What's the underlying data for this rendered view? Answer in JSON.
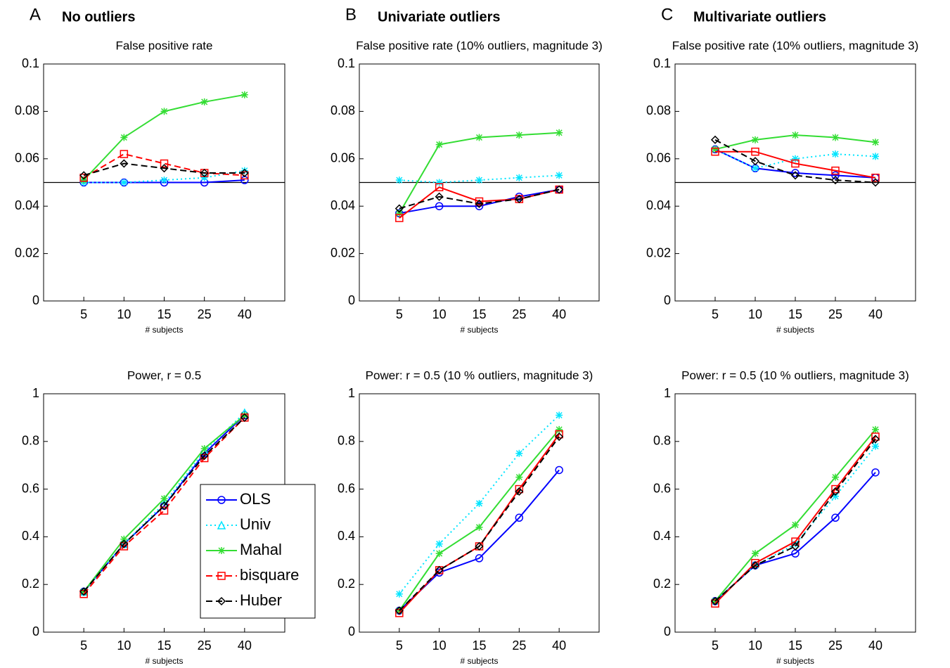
{
  "chart_data": [
    {
      "type": "line",
      "panel": "A",
      "heading": "No outliers",
      "title": "False positive rate",
      "xlabel": "# subjects",
      "categories": [
        "5",
        "10",
        "15",
        "25",
        "40"
      ],
      "ylim": [
        0,
        0.1
      ],
      "yticks": [
        0,
        0.02,
        0.04,
        0.06,
        0.08,
        0.1
      ],
      "hline": 0.05,
      "series": [
        {
          "name": "OLS",
          "color": "#0000ff",
          "style": "solid",
          "marker": "circle",
          "values": [
            0.05,
            0.05,
            0.05,
            0.05,
            0.051
          ]
        },
        {
          "name": "Univ",
          "color": "#00e5ff",
          "style": "dotted",
          "marker": "star",
          "values": [
            0.05,
            0.05,
            0.051,
            0.052,
            0.055
          ]
        },
        {
          "name": "Mahal",
          "color": "#33dd33",
          "style": "solid",
          "marker": "star",
          "values": [
            0.051,
            0.069,
            0.08,
            0.084,
            0.087
          ]
        },
        {
          "name": "bisquare",
          "color": "#ff0000",
          "style": "dashed",
          "marker": "square",
          "values": [
            0.052,
            0.062,
            0.058,
            0.054,
            0.053
          ]
        },
        {
          "name": "Huber",
          "color": "#000000",
          "style": "dashed",
          "marker": "diamond",
          "values": [
            0.053,
            0.058,
            0.056,
            0.054,
            0.054
          ]
        }
      ]
    },
    {
      "type": "line",
      "panel": "B",
      "heading": "Univariate outliers",
      "title": "False positive rate (10% outliers, magnitude 3)",
      "xlabel": "# subjects",
      "categories": [
        "5",
        "10",
        "15",
        "25",
        "40"
      ],
      "ylim": [
        0,
        0.1
      ],
      "yticks": [
        0,
        0.02,
        0.04,
        0.06,
        0.08,
        0.1
      ],
      "hline": 0.05,
      "series": [
        {
          "name": "OLS",
          "color": "#0000ff",
          "style": "solid",
          "marker": "circle",
          "values": [
            0.037,
            0.04,
            0.04,
            0.044,
            0.047
          ]
        },
        {
          "name": "Univ",
          "color": "#00e5ff",
          "style": "dotted",
          "marker": "star",
          "values": [
            0.051,
            0.05,
            0.051,
            0.052,
            0.053
          ]
        },
        {
          "name": "Mahal",
          "color": "#33dd33",
          "style": "solid",
          "marker": "star",
          "values": [
            0.037,
            0.066,
            0.069,
            0.07,
            0.071
          ]
        },
        {
          "name": "bisquare",
          "color": "#ff0000",
          "style": "solid",
          "marker": "square",
          "values": [
            0.035,
            0.048,
            0.042,
            0.043,
            0.047
          ]
        },
        {
          "name": "Huber",
          "color": "#000000",
          "style": "dashed",
          "marker": "diamond",
          "values": [
            0.039,
            0.044,
            0.041,
            0.043,
            0.047
          ]
        }
      ]
    },
    {
      "type": "line",
      "panel": "C",
      "heading": "Multivariate outliers",
      "title": "False positive rate (10% outliers, magnitude 3)",
      "xlabel": "# subjects",
      "categories": [
        "5",
        "10",
        "15",
        "25",
        "40"
      ],
      "ylim": [
        0,
        0.1
      ],
      "yticks": [
        0,
        0.02,
        0.04,
        0.06,
        0.08,
        0.1
      ],
      "hline": 0.05,
      "series": [
        {
          "name": "OLS",
          "color": "#0000ff",
          "style": "solid",
          "marker": "circle",
          "values": [
            0.064,
            0.056,
            0.054,
            0.053,
            0.052
          ]
        },
        {
          "name": "Univ",
          "color": "#00e5ff",
          "style": "dotted",
          "marker": "star",
          "values": [
            0.064,
            0.056,
            0.06,
            0.062,
            0.061
          ]
        },
        {
          "name": "Mahal",
          "color": "#33dd33",
          "style": "solid",
          "marker": "star",
          "values": [
            0.064,
            0.068,
            0.07,
            0.069,
            0.067
          ]
        },
        {
          "name": "bisquare",
          "color": "#ff0000",
          "style": "solid",
          "marker": "square",
          "values": [
            0.063,
            0.063,
            0.058,
            0.055,
            0.052
          ]
        },
        {
          "name": "Huber",
          "color": "#000000",
          "style": "dashed",
          "marker": "diamond",
          "values": [
            0.068,
            0.059,
            0.053,
            0.051,
            0.05
          ]
        }
      ]
    },
    {
      "type": "line",
      "title": "Power, r = 0.5",
      "xlabel": "# subjects",
      "legend": "lower right",
      "categories": [
        "5",
        "10",
        "15",
        "25",
        "40"
      ],
      "ylim": [
        0,
        1
      ],
      "yticks": [
        0,
        0.2,
        0.4,
        0.6,
        0.8,
        1
      ],
      "series": [
        {
          "name": "OLS",
          "color": "#0000ff",
          "style": "solid",
          "marker": "circle",
          "values": [
            0.17,
            0.37,
            0.53,
            0.75,
            0.91
          ]
        },
        {
          "name": "Univ",
          "color": "#00e5ff",
          "style": "dotted",
          "marker": "triangle",
          "values": [
            0.17,
            0.37,
            0.54,
            0.76,
            0.92
          ]
        },
        {
          "name": "Mahal",
          "color": "#33dd33",
          "style": "solid",
          "marker": "star",
          "values": [
            0.17,
            0.39,
            0.56,
            0.77,
            0.91
          ]
        },
        {
          "name": "bisquare",
          "color": "#ff0000",
          "style": "dashed",
          "marker": "square",
          "values": [
            0.16,
            0.36,
            0.51,
            0.73,
            0.9
          ]
        },
        {
          "name": "Huber",
          "color": "#000000",
          "style": "dashed",
          "marker": "diamond",
          "values": [
            0.17,
            0.37,
            0.53,
            0.74,
            0.9
          ]
        }
      ]
    },
    {
      "type": "line",
      "title": "Power: r = 0.5 (10 % outliers, magnitude 3)",
      "xlabel": "# subjects",
      "categories": [
        "5",
        "10",
        "15",
        "25",
        "40"
      ],
      "ylim": [
        0,
        1
      ],
      "yticks": [
        0,
        0.2,
        0.4,
        0.6,
        0.8,
        1
      ],
      "series": [
        {
          "name": "OLS",
          "color": "#0000ff",
          "style": "solid",
          "marker": "circle",
          "values": [
            0.09,
            0.25,
            0.31,
            0.48,
            0.68
          ]
        },
        {
          "name": "Univ",
          "color": "#00e5ff",
          "style": "dotted",
          "marker": "star",
          "values": [
            0.16,
            0.37,
            0.54,
            0.75,
            0.91
          ]
        },
        {
          "name": "Mahal",
          "color": "#33dd33",
          "style": "solid",
          "marker": "star",
          "values": [
            0.09,
            0.33,
            0.44,
            0.65,
            0.85
          ]
        },
        {
          "name": "bisquare",
          "color": "#ff0000",
          "style": "solid",
          "marker": "square",
          "values": [
            0.08,
            0.26,
            0.36,
            0.6,
            0.83
          ]
        },
        {
          "name": "Huber",
          "color": "#000000",
          "style": "dashed",
          "marker": "diamond",
          "values": [
            0.09,
            0.26,
            0.36,
            0.59,
            0.82
          ]
        }
      ]
    },
    {
      "type": "line",
      "title": "Power: r = 0.5 (10 % outliers, magnitude 3)",
      "xlabel": "# subjects",
      "categories": [
        "5",
        "10",
        "15",
        "25",
        "40"
      ],
      "ylim": [
        0,
        1
      ],
      "yticks": [
        0,
        0.2,
        0.4,
        0.6,
        0.8,
        1
      ],
      "series": [
        {
          "name": "OLS",
          "color": "#0000ff",
          "style": "solid",
          "marker": "circle",
          "values": [
            0.13,
            0.28,
            0.33,
            0.48,
            0.67
          ]
        },
        {
          "name": "Univ",
          "color": "#00e5ff",
          "style": "dotted",
          "marker": "star",
          "values": [
            0.13,
            0.28,
            0.37,
            0.57,
            0.78
          ]
        },
        {
          "name": "Mahal",
          "color": "#33dd33",
          "style": "solid",
          "marker": "star",
          "values": [
            0.13,
            0.33,
            0.45,
            0.65,
            0.85
          ]
        },
        {
          "name": "bisquare",
          "color": "#ff0000",
          "style": "solid",
          "marker": "square",
          "values": [
            0.12,
            0.29,
            0.38,
            0.6,
            0.82
          ]
        },
        {
          "name": "Huber",
          "color": "#000000",
          "style": "dashed",
          "marker": "diamond",
          "values": [
            0.13,
            0.28,
            0.36,
            0.59,
            0.81
          ]
        }
      ]
    }
  ]
}
